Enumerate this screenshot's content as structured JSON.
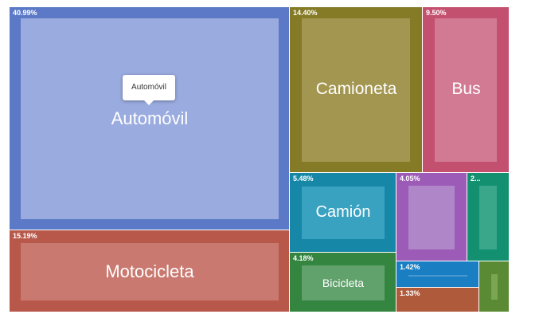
{
  "chart_data": {
    "type": "treemap",
    "items": [
      {
        "name": "Automóvil",
        "percent_label": "40.99%",
        "color": "#5b79c6",
        "inner_color": "#9aabdf"
      },
      {
        "name": "Motocicleta",
        "percent_label": "15.19%",
        "color": "#b7584a",
        "inner_color": "#c9796f"
      },
      {
        "name": "Camioneta",
        "percent_label": "14.40%",
        "color": "#857a25",
        "inner_color": "#a39650"
      },
      {
        "name": "Bus",
        "percent_label": "9.50%",
        "color": "#c4506f",
        "inner_color": "#d27a93"
      },
      {
        "name": "Camión",
        "percent_label": "5.48%",
        "color": "#1687a6",
        "inner_color": "#39a2c1"
      },
      {
        "name": "Bicicleta",
        "percent_label": "4.18%",
        "color": "#338540",
        "inner_color": "#61a16c"
      },
      {
        "name": "",
        "percent_label": "4.05%",
        "color": "#9b5bb7",
        "inner_color": "#af86c8"
      },
      {
        "name": "",
        "percent_label": "2...",
        "color": "#129070",
        "inner_color": "#3aa68a"
      },
      {
        "name": "",
        "percent_label": "1.42%",
        "color": "#1a7ec3",
        "inner_color": "#4a97d0"
      },
      {
        "name": "",
        "percent_label": "1.33%",
        "color": "#b05a3c",
        "inner_color": "#b05a3c"
      },
      {
        "name": "",
        "percent_label": "",
        "color": "#5a8a33",
        "inner_color": "#7aa552"
      }
    ]
  },
  "tooltip": {
    "text": "Automóvil"
  }
}
